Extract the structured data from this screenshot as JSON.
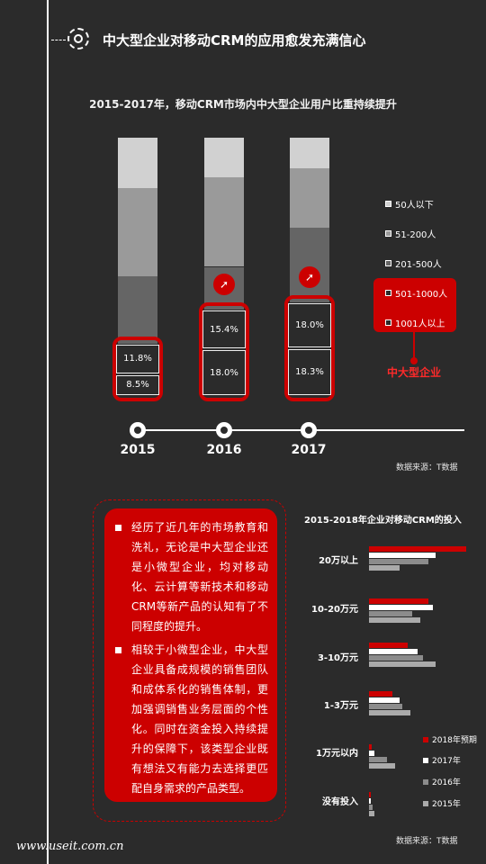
{
  "header": {
    "title": "中大型企业对移动CRM的应用愈发充满信心"
  },
  "chart1": {
    "title": "2015-2017年，移动CRM市场内中大型企业用户比重持续提升",
    "source": "数据来源：T数据",
    "highlight_label": "中大型企业",
    "legend": [
      "50人以下",
      "51-200人",
      "201-500人",
      "501-1000人",
      "1001人以上"
    ],
    "colors": [
      "#d1d1d1",
      "#9a9a9a",
      "#656565",
      "#2b2b2b",
      "#2b2b2b"
    ],
    "years": [
      "2015",
      "2016",
      "2017"
    ]
  },
  "chart2": {
    "title": "2015-2018年企业对移动CRM的投入",
    "source": "数据来源：T数据",
    "categories": [
      "20万以上",
      "10-20万元",
      "3-10万元",
      "1-3万元",
      "1万元以内",
      "没有投入"
    ],
    "legend": [
      "2018年预期",
      "2017年",
      "2016年",
      "2015年"
    ],
    "colors": [
      "#cc0000",
      "#ffffff",
      "#8c8c8c",
      "#aaaaaa"
    ]
  },
  "text_panel": {
    "para1": "经历了近几年的市场教育和洗礼，无论是中大型企业还是小微型企业，均对移动化、云计算等新技术和移动CRM等新产品的认知有了不同程度的提升。",
    "para2": "相较于小微型企业，中大型企业具备成规模的销售团队和成体系化的销售体制，更加强调销售业务层面的个性化。同时在资金投入持续提升的保障下，该类型企业既有想法又有能力去选择更匹配自身需求的产品类型。"
  },
  "footer": {
    "url": "www.useit.com.cn"
  },
  "chart_data": [
    {
      "type": "bar",
      "stacked": true,
      "title": "2015-2017年，移动CRM市场内中大型企业用户比重持续提升",
      "categories": [
        "2015",
        "2016",
        "2017"
      ],
      "series": [
        {
          "name": "50人以下",
          "values": [
            19.5,
            15.5,
            12.0
          ],
          "label": false
        },
        {
          "name": "51-200人",
          "values": [
            34.0,
            34.5,
            23.0
          ],
          "label": false
        },
        {
          "name": "201-500人",
          "values": [
            26.2,
            16.6,
            28.7
          ],
          "label": false
        },
        {
          "name": "501-1000人",
          "values": [
            11.8,
            15.4,
            18.0
          ],
          "label": true
        },
        {
          "name": "1001人以上",
          "values": [
            8.5,
            18.0,
            18.3
          ],
          "label": true
        }
      ],
      "ylim": [
        0,
        100
      ],
      "highlighted_series": [
        "501-1000人",
        "1001人以上"
      ]
    },
    {
      "type": "bar",
      "orientation": "horizontal",
      "title": "2015-2018年企业对移动CRM的投入",
      "categories": [
        "20万以上",
        "10-20万元",
        "3-10万元",
        "1-3万元",
        "1万元以内",
        "没有投入"
      ],
      "series": [
        {
          "name": "2018年预期",
          "values": [
            38,
            23,
            15,
            9,
            1,
            0.5
          ]
        },
        {
          "name": "2017年",
          "values": [
            26,
            25,
            19,
            12,
            2,
            0.8
          ]
        },
        {
          "name": "2016年",
          "values": [
            23,
            17,
            21,
            13,
            7,
            1.5
          ]
        },
        {
          "name": "2015年",
          "values": [
            12,
            20,
            26,
            16,
            10,
            2
          ]
        }
      ],
      "xlim": [
        0,
        40
      ]
    }
  ]
}
